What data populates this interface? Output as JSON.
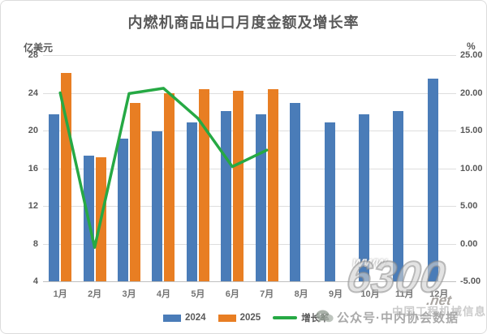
{
  "title": "内燃机商品出口月度金额及增长率",
  "axes_units": {
    "left": "亿美元",
    "right": "%"
  },
  "chart_data": {
    "type": "combo",
    "categories": [
      "1月",
      "2月",
      "3月",
      "4月",
      "5月",
      "6月",
      "7月",
      "8月",
      "9月",
      "10月",
      "11月",
      "12月"
    ],
    "series": [
      {
        "name": "2024",
        "type": "bar",
        "axis": "left",
        "color": "#4A7CB8",
        "values": [
          21.7,
          17.3,
          19.1,
          19.9,
          20.9,
          22.1,
          21.7,
          22.9,
          20.9,
          21.7,
          22.1,
          25.5
        ]
      },
      {
        "name": "2025",
        "type": "bar",
        "axis": "left",
        "color": "#E87E23",
        "values": [
          26.1,
          17.2,
          22.9,
          24.0,
          24.4,
          24.2,
          24.4,
          null,
          null,
          null,
          null,
          null
        ]
      },
      {
        "name": "增长率",
        "type": "line",
        "axis": "right",
        "color": "#26A944",
        "values": [
          20.0,
          -0.5,
          19.9,
          20.6,
          16.6,
          10.2,
          12.4,
          null,
          null,
          null,
          null,
          null
        ]
      }
    ],
    "axes": {
      "left": {
        "label": "亿美元",
        "min": 4,
        "max": 28,
        "step": 4,
        "ticks": [
          "28",
          "24",
          "20",
          "16",
          "12",
          "8",
          "4"
        ]
      },
      "right": {
        "label": "%",
        "min": -5,
        "max": 25,
        "step": 5,
        "ticks": [
          "25.00",
          "20.00",
          "15.00",
          "10.00",
          "5.00",
          "0.00",
          "-5.00"
        ]
      }
    },
    "grid": true,
    "legend_position": "bottom"
  },
  "watermarks": {
    "logo_www": "www.",
    "logo_number": "6300",
    "logo_net": ".net",
    "wechat_label": "公众号·中内协会数据",
    "site_name": "中国工程机械信息网"
  },
  "colors": {
    "grid": "#DEDEDE",
    "axis_line": "#BFBFBF",
    "title_text": "#595959",
    "tick_text": "#595959",
    "month_text": "#737373"
  }
}
